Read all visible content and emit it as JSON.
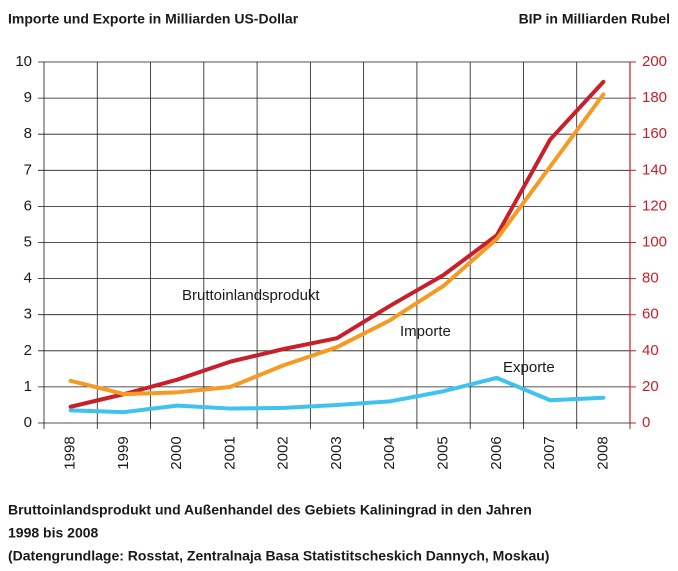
{
  "chart_data": {
    "type": "line",
    "title": "Importe und Exporte in Milliarden US-Dollar",
    "y2_title": "BIP in Milliarden Rubel",
    "categories": [
      "1998",
      "1999",
      "2000",
      "2001",
      "2002",
      "2003",
      "2004",
      "2005",
      "2006",
      "2007",
      "2008"
    ],
    "series": [
      {
        "name": "Bruttoinlandsprodukt",
        "color": "#c8202a",
        "axis": "y2",
        "values": [
          9,
          16,
          24,
          34,
          41,
          47,
          65,
          82,
          104,
          157,
          189
        ]
      },
      {
        "name": "Importe",
        "color": "#f59a23",
        "values": [
          1.17,
          0.8,
          0.85,
          1.0,
          1.6,
          2.1,
          2.85,
          3.8,
          5.1,
          7.1,
          9.1
        ]
      },
      {
        "name": "Exporte",
        "color": "#3fc3ee",
        "values": [
          0.35,
          0.3,
          0.48,
          0.4,
          0.42,
          0.5,
          0.6,
          0.88,
          1.25,
          0.63,
          0.7
        ]
      }
    ],
    "ylim": [
      0,
      10
    ],
    "yticks": [
      0,
      1,
      2,
      3,
      4,
      5,
      6,
      7,
      8,
      9,
      10
    ],
    "y2lim": [
      0,
      200
    ],
    "y2ticks": [
      0,
      20,
      40,
      60,
      80,
      100,
      120,
      140,
      160,
      180,
      200
    ],
    "y2color": "#c8202a",
    "grid": true,
    "caption": [
      "Bruttoinlandsprodukt und Außenhandel des Gebiets Kaliningrad in den Jahren",
      "1998 bis 2008",
      "(Datengrundlage: Rosstat, Zentralnaja Basa Statistitscheskich Dannych, Moskau)"
    ]
  }
}
